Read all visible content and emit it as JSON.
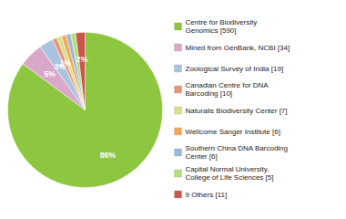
{
  "chart_data": {
    "type": "pie",
    "categories": [
      "Centre for Biodiversity\nGenomics [590]",
      "Mined from GenBank, NCBI [34]",
      "Zoological Survey of India [19]",
      "Canadian Centre for DNA\nBarcoding [10]",
      "Naturalis Biodiversity Center [7]",
      "Wellcome Sanger Institute [6]",
      "Southern China DNA Barcoding\nCenter [6]",
      "Capital Normal University,\nCollege of Life Sciences [5]",
      "9 Others [11]"
    ],
    "values": [
      86,
      5,
      3,
      1,
      1,
      1,
      1,
      1,
      2
    ],
    "value_labels": [
      "86%",
      "5%",
      "3%",
      "1%",
      null,
      null,
      null,
      null,
      "2%"
    ],
    "colors": [
      "#8dc63f",
      "#d9a7c7",
      "#aac4e0",
      "#e8967a",
      "#d9e08a",
      "#f0a857",
      "#9eb8d8",
      "#b8dc7a",
      "#c8564a"
    ],
    "data_labels": true,
    "legend": "right"
  }
}
